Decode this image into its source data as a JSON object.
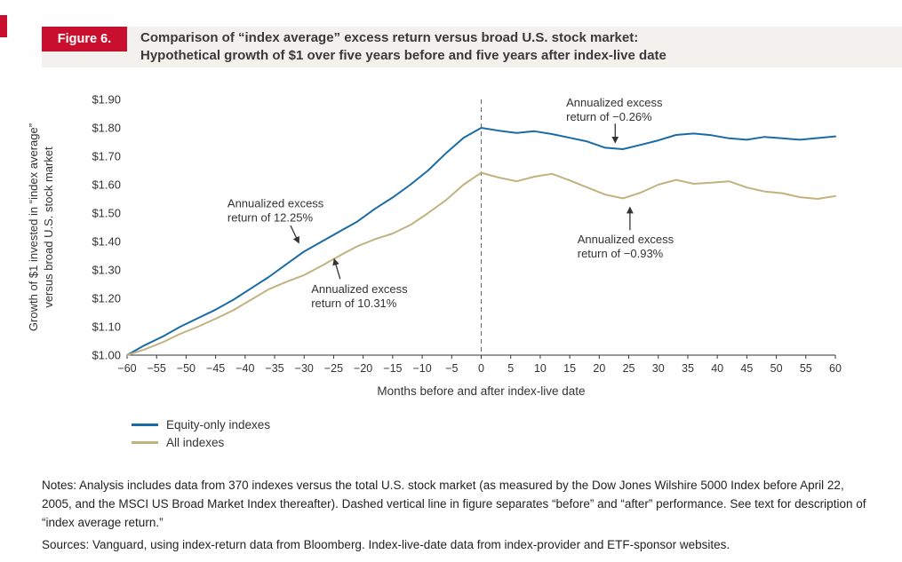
{
  "header": {
    "figure_label": "Figure 6.",
    "title_line1": "Comparison of “index average” excess return versus broad U.S. stock market:",
    "title_line2": "Hypothetical growth of $1 over five years before and five years after index-live date"
  },
  "colors": {
    "accent_red": "#C8102E",
    "equity_line": "#1A6BA5",
    "all_line": "#C2B27F",
    "axis_text": "#333333",
    "annotation_text": "#333333",
    "dashed_line": "#666666"
  },
  "chart_data": {
    "type": "line",
    "title": "Comparison of “index average” excess return versus broad U.S. stock market: Hypothetical growth of $1 over five years before and five years after index-live date",
    "xlabel": "Months before and after index-live date",
    "ylabel_lines": [
      "Growth of $1 invested in “index average”",
      "versus broad U.S. stock market"
    ],
    "xlim": [
      -60,
      60
    ],
    "ylim": [
      1.0,
      1.9
    ],
    "x_ticks": [
      -60,
      -55,
      -50,
      -45,
      -40,
      -35,
      -30,
      -25,
      -20,
      -15,
      -10,
      -5,
      0,
      5,
      10,
      15,
      20,
      25,
      30,
      35,
      40,
      45,
      50,
      55,
      60
    ],
    "x_tick_labels": [
      "−60",
      "−55",
      "−50",
      "−45",
      "−40",
      "−35",
      "−30",
      "−25",
      "−20",
      "−15",
      "−10",
      "−5",
      "0",
      "5",
      "10",
      "15",
      "20",
      "25",
      "30",
      "35",
      "40",
      "45",
      "50",
      "55",
      "60"
    ],
    "y_ticks": [
      1.0,
      1.1,
      1.2,
      1.3,
      1.4,
      1.5,
      1.6,
      1.7,
      1.8,
      1.9
    ],
    "y_tick_labels": [
      "$1.00",
      "$1.10",
      "$1.20",
      "$1.30",
      "$1.40",
      "$1.50",
      "$1.60",
      "$1.70",
      "$1.80",
      "$1.90"
    ],
    "grid": false,
    "zero_line_x": 0,
    "legend_position": "bottom-left",
    "x": [
      -60,
      -57,
      -54,
      -51,
      -48,
      -45,
      -42,
      -39,
      -36,
      -33,
      -30,
      -27,
      -24,
      -21,
      -18,
      -15,
      -12,
      -9,
      -6,
      -3,
      0,
      3,
      6,
      9,
      12,
      15,
      18,
      21,
      24,
      27,
      30,
      33,
      36,
      39,
      42,
      45,
      48,
      51,
      54,
      57,
      60
    ],
    "series": [
      {
        "name": "Equity-only indexes",
        "color_key": "equity_line",
        "annualized_excess_return_before": "12.25%",
        "annualized_excess_return_after": "−0.26%",
        "values": [
          1.0,
          1.035,
          1.065,
          1.1,
          1.13,
          1.16,
          1.195,
          1.235,
          1.275,
          1.32,
          1.365,
          1.4,
          1.435,
          1.47,
          1.515,
          1.555,
          1.6,
          1.65,
          1.71,
          1.765,
          1.8,
          1.79,
          1.782,
          1.788,
          1.778,
          1.765,
          1.752,
          1.73,
          1.725,
          1.74,
          1.756,
          1.775,
          1.78,
          1.774,
          1.763,
          1.758,
          1.768,
          1.763,
          1.758,
          1.764,
          1.77
        ]
      },
      {
        "name": "All indexes",
        "color_key": "all_line",
        "annualized_excess_return_before": "10.31%",
        "annualized_excess_return_after": "−0.93%",
        "values": [
          1.0,
          1.02,
          1.045,
          1.075,
          1.1,
          1.128,
          1.158,
          1.195,
          1.232,
          1.258,
          1.282,
          1.315,
          1.35,
          1.383,
          1.408,
          1.428,
          1.458,
          1.5,
          1.545,
          1.6,
          1.642,
          1.625,
          1.612,
          1.628,
          1.638,
          1.615,
          1.59,
          1.565,
          1.552,
          1.572,
          1.6,
          1.617,
          1.603,
          1.607,
          1.612,
          1.59,
          1.576,
          1.57,
          1.556,
          1.55,
          1.56
        ]
      }
    ],
    "annotations": [
      {
        "lines": [
          "Annualized excess",
          "return of 12.25%"
        ],
        "text_x": -43.0,
        "text_y": 1.52,
        "arrow": {
          "from": [
            -32.3,
            1.456
          ],
          "to": [
            -30.9,
            1.395
          ]
        }
      },
      {
        "lines": [
          "Annualized excess",
          "return of 10.31%"
        ],
        "text_x": -28.8,
        "text_y": 1.219,
        "arrow": {
          "from": [
            -23.9,
            1.268
          ],
          "to": [
            -24.9,
            1.338
          ]
        }
      },
      {
        "lines": [
          "Annualized excess",
          "return of −0.26%"
        ],
        "text_x": 14.4,
        "text_y": 1.875,
        "arrow": {
          "from": [
            22.7,
            1.815
          ],
          "to": [
            22.7,
            1.748
          ]
        }
      },
      {
        "lines": [
          "Annualized excess",
          "return of −0.93%"
        ],
        "text_x": 16.3,
        "text_y": 1.393,
        "arrow": {
          "from": [
            25.2,
            1.44
          ],
          "to": [
            25.2,
            1.52
          ]
        }
      }
    ]
  },
  "legend": {
    "items": [
      {
        "label": "Equity-only indexes"
      },
      {
        "label": "All indexes"
      }
    ]
  },
  "footer": {
    "notes_text": "Notes: Analysis includes data from 370 indexes versus the total U.S. stock market (as measured by the Dow Jones Wilshire 5000 Index before April 22, 2005, and the MSCI US Broad Market Index thereafter). Dashed vertical line in figure separates “before” and “after” performance. See text for description of “index average return.”",
    "sources_text": "Sources: Vanguard, using index-return data from Bloomberg. Index-live-date data from index-provider and ETF-sponsor websites."
  }
}
